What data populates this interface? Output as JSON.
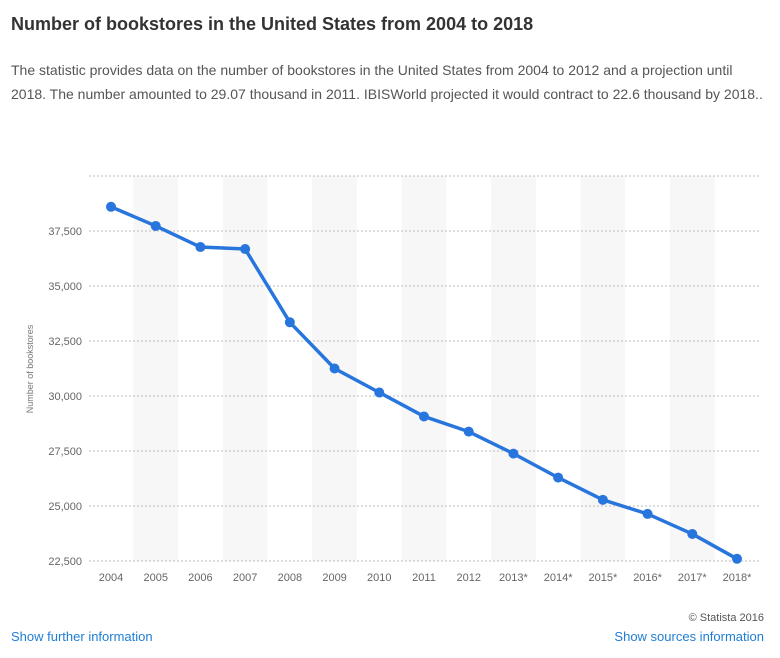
{
  "title": "Number of bookstores in the United States from 2004 to 2018",
  "description": "The statistic provides data on the number of bookstores in the United States from 2004 to 2012 and a projection until 2018. The number amounted to 29.07 thousand in 2011. IBISWorld projected it would contract to 22.6 thousand by 2018..",
  "copyright": "© Statista 2016",
  "links": {
    "further": "Show further information",
    "sources": "Show sources information"
  },
  "chart_data": {
    "type": "line",
    "title": "",
    "xlabel": "",
    "ylabel": "Number of bookstores",
    "categories": [
      "2004",
      "2005",
      "2006",
      "2007",
      "2008",
      "2009",
      "2010",
      "2011",
      "2012",
      "2013*",
      "2014*",
      "2015*",
      "2016*",
      "2017*",
      "2018*"
    ],
    "values": [
      38600,
      37730,
      36770,
      36680,
      33350,
      31250,
      30160,
      29070,
      28380,
      27380,
      26290,
      25280,
      24640,
      23730,
      22600
    ],
    "yticks": [
      22500,
      25000,
      27500,
      30000,
      32500,
      35000,
      37500
    ],
    "ytick_labels": [
      "22,500",
      "25,000",
      "27,500",
      "30,000",
      "32,500",
      "35,000",
      "37,500"
    ],
    "ylim": [
      22500,
      40000
    ],
    "grid": true,
    "color": "#2876dd"
  }
}
